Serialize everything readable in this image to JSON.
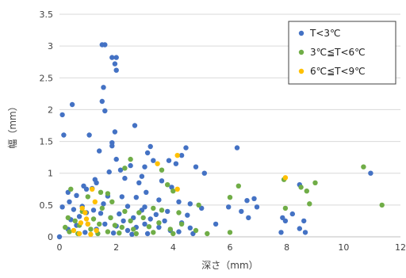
{
  "chart_data": {
    "type": "scatter",
    "title": "",
    "xlabel": "深さ（mm）",
    "ylabel": "幅（mm）",
    "xlim": [
      0,
      12
    ],
    "ylim": [
      0,
      3.5
    ],
    "x_ticks": [
      0,
      2,
      4,
      6,
      8,
      10,
      12
    ],
    "y_ticks": [
      0,
      0.5,
      1,
      1.5,
      2,
      2.5,
      3,
      3.5
    ],
    "y_tick_labels": [
      "0",
      "0.5",
      "1",
      "1.5",
      "2",
      "2.5",
      "3",
      "3.5"
    ],
    "grid": "horizontal",
    "legend_position": "top-right",
    "series": [
      {
        "name": "T<3℃",
        "color": "#4472C4",
        "points": [
          [
            0,
            0
          ],
          [
            0.1,
            1.92
          ],
          [
            0.15,
            1.6
          ],
          [
            0.1,
            0.47
          ],
          [
            0.45,
            2.08
          ],
          [
            1.5,
            3.02
          ],
          [
            1.6,
            3.02
          ],
          [
            1.85,
            2.82
          ],
          [
            2.0,
            2.82
          ],
          [
            1.95,
            2.72
          ],
          [
            2.0,
            2.62
          ],
          [
            1.55,
            2.35
          ],
          [
            1.5,
            2.13
          ],
          [
            1.6,
            1.98
          ],
          [
            1.95,
            1.65
          ],
          [
            1.05,
            1.6
          ],
          [
            2.65,
            1.75
          ],
          [
            1.85,
            1.48
          ],
          [
            1.85,
            1.43
          ],
          [
            3.2,
            1.42
          ],
          [
            3.1,
            1.32
          ],
          [
            4.45,
            1.4
          ],
          [
            1.4,
            1.35
          ],
          [
            4.3,
            1.28
          ],
          [
            2.0,
            1.22
          ],
          [
            3.3,
            1.2
          ],
          [
            3.85,
            1.2
          ],
          [
            2.5,
            1.12
          ],
          [
            4.1,
            1.15
          ],
          [
            4.8,
            1.1
          ],
          [
            3.0,
            1.1
          ],
          [
            1.75,
            1.02
          ],
          [
            2.15,
            1.05
          ],
          [
            5.1,
            1.0
          ],
          [
            2.9,
            0.95
          ],
          [
            2.3,
            0.92
          ],
          [
            1.25,
            0.9
          ],
          [
            3.6,
            0.88
          ],
          [
            1.3,
            0.85
          ],
          [
            2.8,
            0.85
          ],
          [
            0.85,
            0.8
          ],
          [
            3.95,
            0.78
          ],
          [
            1.15,
            0.76
          ],
          [
            3.05,
            0.7
          ],
          [
            0.95,
            0.75
          ],
          [
            0.3,
            0.7
          ],
          [
            0.6,
            0.65
          ],
          [
            1.7,
            0.64
          ],
          [
            2.2,
            0.63
          ],
          [
            2.7,
            0.62
          ],
          [
            0.35,
            0.55
          ],
          [
            3.5,
            0.58
          ],
          [
            4.2,
            0.55
          ],
          [
            1.55,
            0.52
          ],
          [
            4.6,
            0.52
          ],
          [
            0.8,
            0.48
          ],
          [
            2.4,
            0.48
          ],
          [
            3.0,
            0.47
          ],
          [
            5.0,
            0.45
          ],
          [
            0.5,
            0.43
          ],
          [
            1.2,
            0.42
          ],
          [
            2.9,
            0.42
          ],
          [
            3.8,
            0.4
          ],
          [
            0.95,
            0.38
          ],
          [
            1.45,
            0.37
          ],
          [
            2.1,
            0.36
          ],
          [
            3.4,
            0.35
          ],
          [
            4.5,
            0.34
          ],
          [
            0.7,
            0.32
          ],
          [
            1.8,
            0.3
          ],
          [
            2.6,
            0.3
          ],
          [
            3.2,
            0.28
          ],
          [
            0.4,
            0.27
          ],
          [
            2.25,
            0.25
          ],
          [
            3.7,
            0.25
          ],
          [
            4.3,
            0.22
          ],
          [
            1.0,
            0.2
          ],
          [
            1.6,
            0.2
          ],
          [
            3.0,
            0.2
          ],
          [
            5.5,
            0.2
          ],
          [
            0.6,
            0.18
          ],
          [
            2.0,
            0.17
          ],
          [
            2.7,
            0.15
          ],
          [
            3.5,
            0.15
          ],
          [
            4.6,
            0.14
          ],
          [
            0.3,
            0.12
          ],
          [
            1.3,
            0.12
          ],
          [
            2.4,
            0.1
          ],
          [
            3.9,
            0.1
          ],
          [
            4.2,
            0.08
          ],
          [
            0.9,
            0.07
          ],
          [
            1.9,
            0.06
          ],
          [
            3.1,
            0.05
          ],
          [
            4.7,
            0.05
          ],
          [
            2.55,
            0.04
          ],
          [
            6.25,
            1.4
          ],
          [
            6.6,
            0.57
          ],
          [
            6.85,
            0.6
          ],
          [
            6.95,
            0.47
          ],
          [
            6.4,
            0.4
          ],
          [
            6.65,
            0.3
          ],
          [
            5.95,
            0.47
          ],
          [
            7.85,
            0.3
          ],
          [
            7.95,
            0.25
          ],
          [
            8.2,
            0.36
          ],
          [
            8.45,
            0.82
          ],
          [
            8.6,
            0.25
          ],
          [
            8.45,
            0.13
          ],
          [
            8.65,
            0.07
          ],
          [
            7.8,
            0.07
          ],
          [
            10.95,
            1.0
          ]
        ]
      },
      {
        "name": "3℃≦T<6℃",
        "color": "#70AD47",
        "points": [
          [
            0.4,
            0.75
          ],
          [
            1.0,
            0.63
          ],
          [
            1.45,
            0.7
          ],
          [
            1.7,
            0.68
          ],
          [
            1.85,
            0.55
          ],
          [
            2.3,
            1.08
          ],
          [
            2.5,
            1.22
          ],
          [
            3.6,
            1.05
          ],
          [
            3.8,
            0.82
          ],
          [
            4.0,
            0.72
          ],
          [
            4.9,
            0.5
          ],
          [
            0.8,
            0.4
          ],
          [
            1.5,
            0.45
          ],
          [
            2.3,
            0.4
          ],
          [
            2.8,
            0.38
          ],
          [
            3.3,
            0.45
          ],
          [
            3.6,
            0.42
          ],
          [
            4.2,
            0.38
          ],
          [
            0.3,
            0.3
          ],
          [
            0.55,
            0.25
          ],
          [
            1.2,
            0.28
          ],
          [
            1.8,
            0.3
          ],
          [
            2.5,
            0.25
          ],
          [
            2.95,
            0.3
          ],
          [
            3.5,
            0.22
          ],
          [
            4.3,
            0.2
          ],
          [
            0.2,
            0.15
          ],
          [
            0.7,
            0.18
          ],
          [
            1.1,
            0.12
          ],
          [
            1.4,
            0.2
          ],
          [
            1.95,
            0.18
          ],
          [
            2.2,
            0.15
          ],
          [
            2.6,
            0.12
          ],
          [
            3.15,
            0.16
          ],
          [
            3.9,
            0.12
          ],
          [
            4.8,
            0.1
          ],
          [
            0.35,
            0.08
          ],
          [
            0.65,
            0.05
          ],
          [
            1.35,
            0.05
          ],
          [
            1.7,
            0.08
          ],
          [
            2.1,
            0.06
          ],
          [
            2.7,
            0.05
          ],
          [
            3.3,
            0.07
          ],
          [
            4.0,
            0.05
          ],
          [
            5.2,
            0.05
          ],
          [
            6.0,
            0.07
          ],
          [
            6.3,
            0.8
          ],
          [
            6.0,
            0.62
          ],
          [
            7.9,
            0.9
          ],
          [
            8.5,
            0.78
          ],
          [
            8.7,
            0.72
          ],
          [
            9.0,
            0.85
          ],
          [
            8.8,
            0.52
          ],
          [
            7.95,
            0.45
          ],
          [
            10.7,
            1.1
          ],
          [
            11.35,
            0.5
          ]
        ]
      },
      {
        "name": "6℃≦T<9℃",
        "color": "#FFC000",
        "points": [
          [
            4.15,
            1.28
          ],
          [
            3.45,
            1.15
          ],
          [
            4.15,
            0.75
          ],
          [
            7.95,
            0.93
          ],
          [
            1.15,
            0.75
          ],
          [
            1.25,
            0.55
          ],
          [
            0.8,
            0.45
          ],
          [
            0.9,
            0.38
          ],
          [
            0.95,
            0.28
          ],
          [
            0.75,
            0.22
          ],
          [
            1.0,
            0.2
          ],
          [
            0.5,
            0.1
          ],
          [
            1.3,
            0.1
          ],
          [
            0.7,
            0.05
          ],
          [
            1.1,
            0.04
          ]
        ]
      }
    ]
  }
}
